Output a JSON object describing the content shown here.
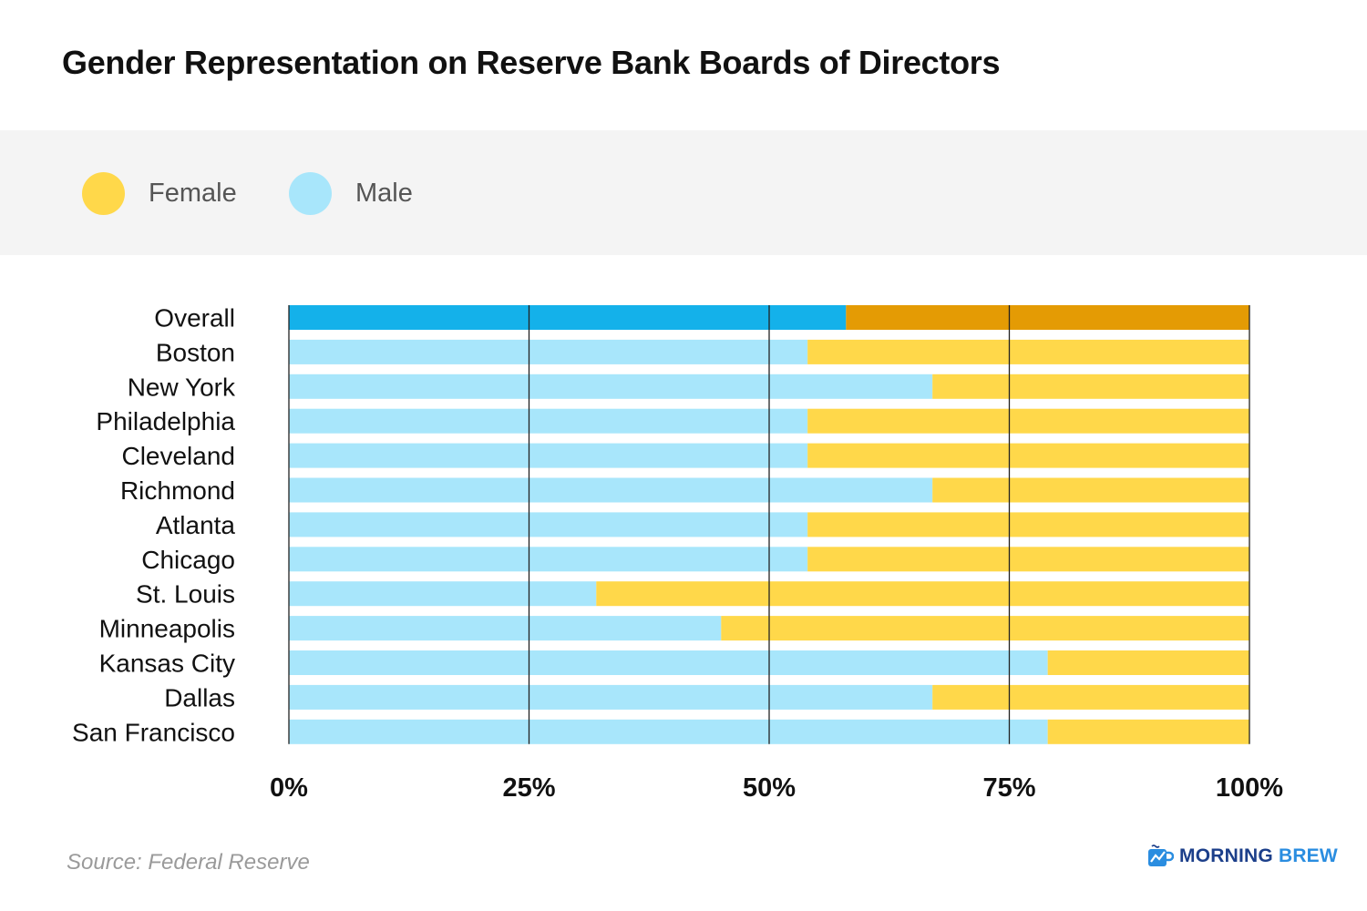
{
  "title": "Gender Representation on Reserve Bank Boards of Directors",
  "legend": [
    {
      "label": "Female",
      "color": "#ffd84a"
    },
    {
      "label": "Male",
      "color": "#a8e6fb"
    }
  ],
  "colors": {
    "male": "#a8e6fb",
    "female": "#ffd84a",
    "male_overall": "#14b1ea",
    "female_overall": "#e49b04",
    "gridline": "#222222"
  },
  "chart_data": {
    "type": "bar",
    "orientation": "horizontal",
    "stacked": true,
    "categories": [
      "Overall",
      "Boston",
      "New York",
      "Philadelphia",
      "Cleveland",
      "Richmond",
      "Atlanta",
      "Chicago",
      "St. Louis",
      "Minneapolis",
      "Kansas City",
      "Dallas",
      "San Francisco"
    ],
    "series": [
      {
        "name": "Male",
        "values": [
          58,
          54,
          67,
          54,
          54,
          67,
          54,
          54,
          32,
          45,
          79,
          67,
          79
        ]
      },
      {
        "name": "Female",
        "values": [
          42,
          46,
          33,
          46,
          46,
          33,
          46,
          46,
          68,
          55,
          21,
          33,
          21
        ]
      }
    ],
    "xlim": [
      0,
      100
    ],
    "xticks": [
      0,
      25,
      50,
      75,
      100
    ],
    "xtick_labels": [
      "0%",
      "25%",
      "50%",
      "75%",
      "100%"
    ],
    "grid": true,
    "legend_position": "top-left",
    "title": "Gender Representation on Reserve Bank Boards of Directors"
  },
  "source": "Source: Federal Reserve",
  "brand": {
    "part1": "MORNING",
    "part2": "BREW",
    "icon": "coffee-mug-chart-icon"
  }
}
